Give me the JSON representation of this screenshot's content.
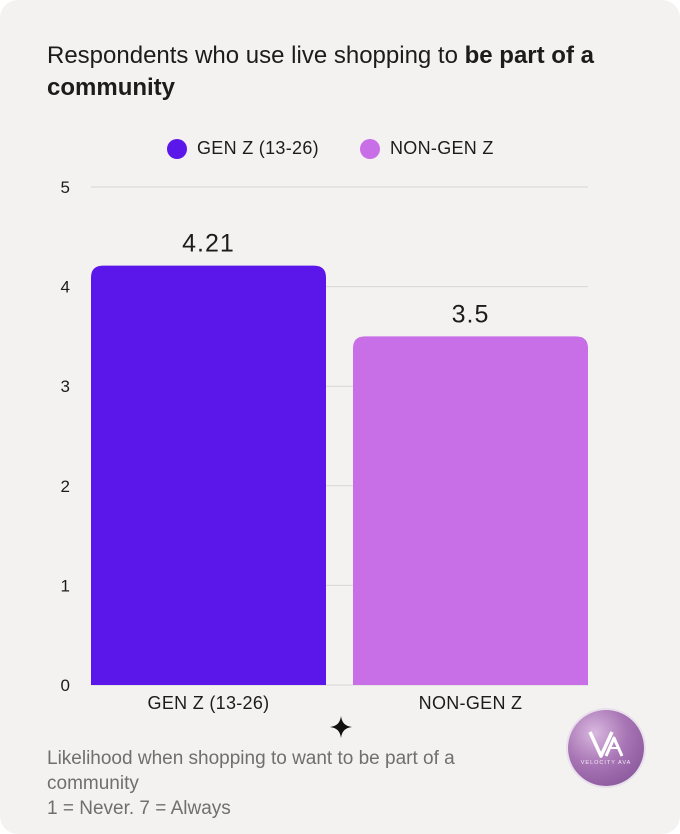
{
  "title": {
    "regular": "Respondents who use live shopping to ",
    "bold": "be part of a community"
  },
  "legend": [
    {
      "label": "GEN Z (13-26)",
      "color": "#5b17ea"
    },
    {
      "label": "NON-GEN Z",
      "color": "#c86ee6"
    }
  ],
  "chart_data": {
    "type": "bar",
    "categories": [
      "GEN Z (13-26)",
      "NON-GEN Z"
    ],
    "values": [
      4.21,
      3.5
    ],
    "data_labels": [
      "4.21",
      "3.5"
    ],
    "colors": [
      "#5b17ea",
      "#c86ee6"
    ],
    "ylim": [
      0,
      5
    ],
    "yticks": [
      0,
      1,
      2,
      3,
      4,
      5
    ],
    "grid": true,
    "legend_position": "top-center"
  },
  "footer": {
    "line1": "Likelihood when shopping to want to be part of a",
    "line2": "community",
    "line3": "1 = Never. 7 = Always"
  },
  "brand": {
    "logo_text": "VELOCITY AVA",
    "logo_icon": "va-monogram-icon",
    "decor_icon": "sparkle-icon"
  }
}
